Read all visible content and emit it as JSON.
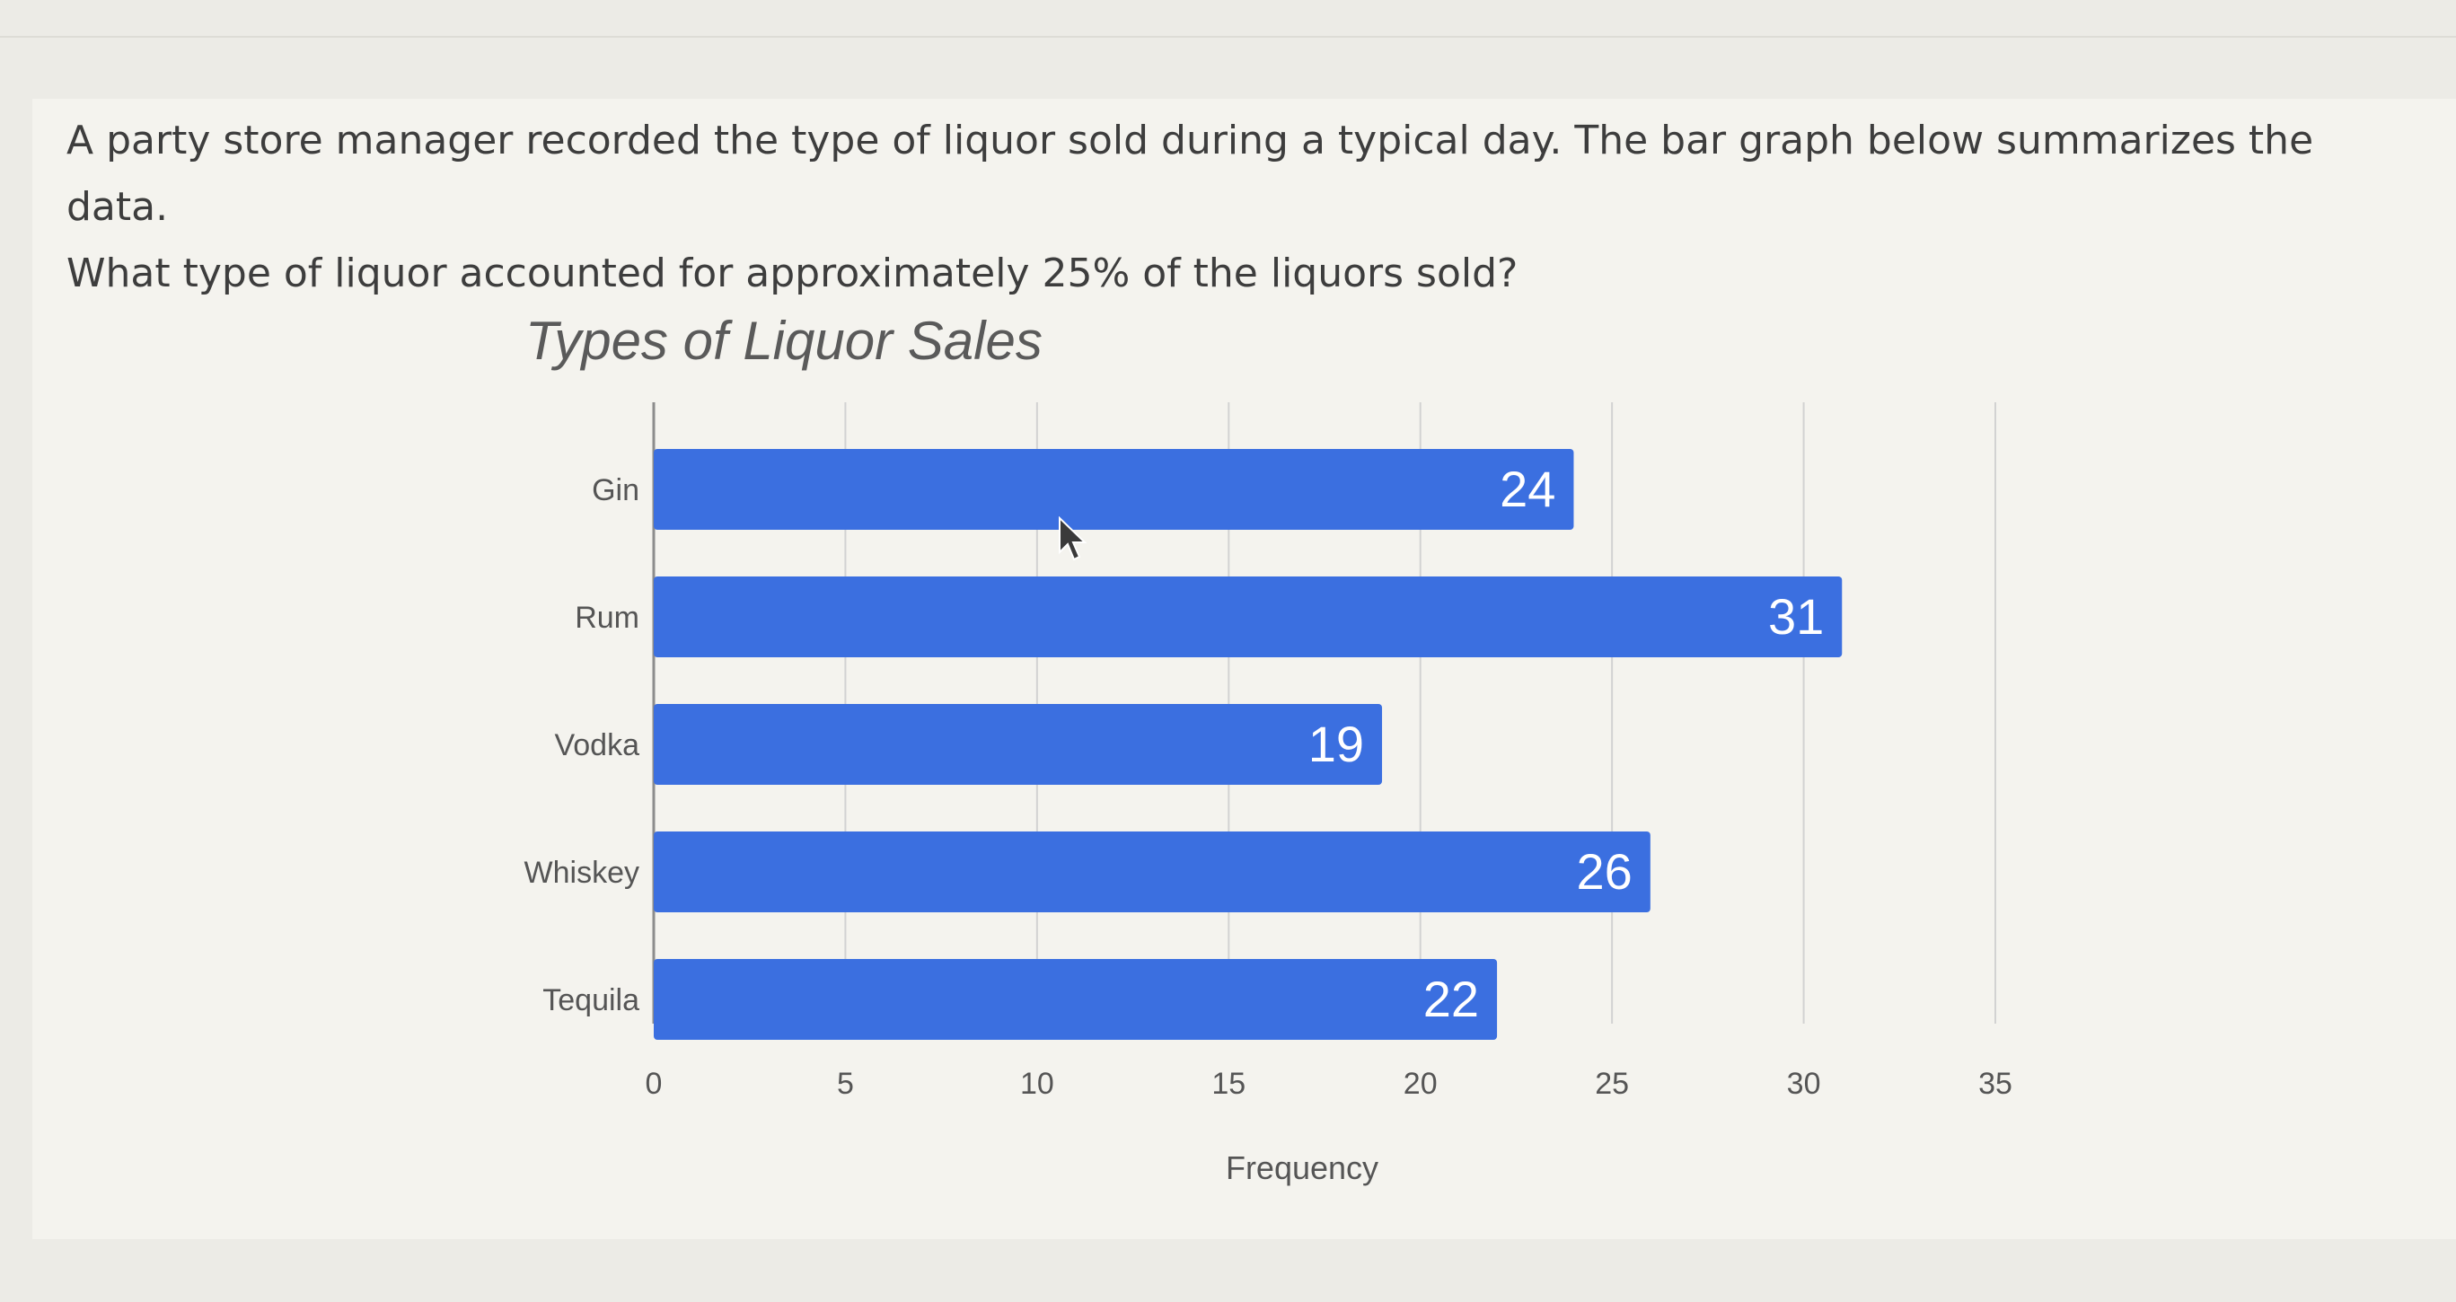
{
  "question": {
    "line1": "A party store manager recorded the type of liquor sold during a typical day.  The bar graph below summarizes the data.",
    "line2": "What type of liquor accounted for approximately 25% of the liquors sold?"
  },
  "chart_data": {
    "type": "bar",
    "orientation": "horizontal",
    "title": "Types of Liquor Sales",
    "xlabel": "Frequency",
    "ylabel": "",
    "categories": [
      "Gin",
      "Rum",
      "Vodka",
      "Whiskey",
      "Tequila"
    ],
    "values": [
      24,
      31,
      19,
      26,
      22
    ],
    "xlim": [
      0,
      35
    ],
    "xticks": [
      0,
      5,
      10,
      15,
      20,
      25,
      30,
      35
    ],
    "data_labels": true,
    "grid": true,
    "bar_color": "#3b6fe0"
  }
}
